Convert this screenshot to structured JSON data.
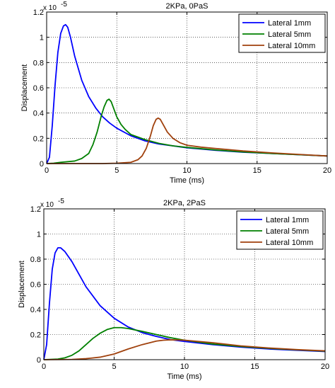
{
  "page": {
    "caption_fragment": ""
  },
  "chart_data": [
    {
      "type": "line",
      "title": "2KPa, 0PaS",
      "xlabel": "Time (ms)",
      "ylabel": "Displacement",
      "y_multiplier": "x 10",
      "y_multiplier_exp": "-5",
      "xlim": [
        0,
        20
      ],
      "ylim": [
        0,
        1.2
      ],
      "xticks": [
        0,
        5,
        10,
        15,
        20
      ],
      "xtick_labels": [
        "0",
        "5",
        "10",
        "15",
        "20"
      ],
      "yticks": [
        0,
        0.2,
        0.4,
        0.6,
        0.8,
        1.0,
        1.2
      ],
      "ytick_labels": [
        "0",
        "0.2",
        "0.4",
        "0.6",
        "0.8",
        "1",
        "1.2"
      ],
      "grid": true,
      "legend_position": "top-right",
      "series": [
        {
          "name": "Lateral 1mm",
          "color": "#0000ff",
          "x": [
            0,
            0.2,
            0.4,
            0.6,
            0.8,
            1.0,
            1.2,
            1.35,
            1.5,
            1.7,
            2.0,
            2.5,
            3.0,
            3.5,
            4.0,
            4.5,
            5.0,
            6.0,
            7.0,
            8.0,
            9.0,
            10.0,
            12.0,
            14.0,
            16.0,
            18.0,
            20.0
          ],
          "y": [
            0,
            0.05,
            0.3,
            0.62,
            0.88,
            1.03,
            1.09,
            1.1,
            1.08,
            1.0,
            0.85,
            0.66,
            0.53,
            0.44,
            0.37,
            0.32,
            0.28,
            0.22,
            0.18,
            0.155,
            0.14,
            0.125,
            0.105,
            0.09,
            0.08,
            0.07,
            0.06
          ]
        },
        {
          "name": "Lateral 5mm",
          "color": "#008000",
          "x": [
            0,
            0.5,
            1.0,
            2.0,
            2.5,
            3.0,
            3.3,
            3.6,
            3.9,
            4.1,
            4.3,
            4.45,
            4.6,
            4.8,
            5.0,
            5.3,
            5.6,
            6.0,
            7.0,
            8.0,
            9.0,
            10.0,
            12.0,
            14.0,
            16.0,
            18.0,
            20.0
          ],
          "y": [
            0,
            0.003,
            0.01,
            0.02,
            0.04,
            0.08,
            0.15,
            0.25,
            0.38,
            0.45,
            0.5,
            0.51,
            0.49,
            0.43,
            0.37,
            0.31,
            0.27,
            0.23,
            0.19,
            0.16,
            0.14,
            0.128,
            0.108,
            0.092,
            0.08,
            0.07,
            0.06
          ]
        },
        {
          "name": "Lateral 10mm",
          "color": "#a0410d",
          "x": [
            0,
            2.0,
            4.0,
            5.0,
            6.0,
            6.5,
            6.8,
            7.1,
            7.4,
            7.6,
            7.8,
            7.95,
            8.1,
            8.3,
            8.6,
            9.0,
            9.5,
            10.0,
            11.0,
            12.0,
            14.0,
            16.0,
            18.0,
            20.0
          ],
          "y": [
            0,
            0.0,
            0.0,
            0.003,
            0.01,
            0.03,
            0.06,
            0.12,
            0.22,
            0.3,
            0.35,
            0.36,
            0.35,
            0.31,
            0.25,
            0.2,
            0.165,
            0.145,
            0.13,
            0.12,
            0.1,
            0.085,
            0.072,
            0.06
          ]
        }
      ]
    },
    {
      "type": "line",
      "title": "2KPa, 2PaS",
      "xlabel": "Time (ms)",
      "ylabel": "Displacement",
      "y_multiplier": "x 10",
      "y_multiplier_exp": "-5",
      "xlim": [
        0,
        20
      ],
      "ylim": [
        0,
        1.2
      ],
      "xticks": [
        0,
        5,
        10,
        15,
        20
      ],
      "xtick_labels": [
        "0",
        "5",
        "10",
        "15",
        "20"
      ],
      "yticks": [
        0,
        0.2,
        0.4,
        0.6,
        0.8,
        1.0,
        1.2
      ],
      "ytick_labels": [
        "0",
        "0.2",
        "0.4",
        "0.6",
        "0.8",
        "1",
        "1.2"
      ],
      "grid": true,
      "legend_position": "top-right",
      "series": [
        {
          "name": "Lateral 1mm",
          "color": "#0000ff",
          "x": [
            0,
            0.2,
            0.4,
            0.6,
            0.8,
            1.0,
            1.2,
            1.5,
            2.0,
            2.5,
            3.0,
            4.0,
            5.0,
            6.0,
            7.0,
            8.0,
            9.0,
            10.0,
            12.0,
            14.0,
            16.0,
            18.0,
            20.0
          ],
          "y": [
            0,
            0.12,
            0.45,
            0.72,
            0.85,
            0.89,
            0.89,
            0.86,
            0.78,
            0.68,
            0.58,
            0.43,
            0.33,
            0.26,
            0.215,
            0.185,
            0.16,
            0.145,
            0.12,
            0.1,
            0.085,
            0.075,
            0.065
          ]
        },
        {
          "name": "Lateral 5mm",
          "color": "#008000",
          "x": [
            0,
            1.0,
            1.5,
            2.0,
            2.5,
            3.0,
            3.5,
            4.0,
            4.5,
            5.0,
            5.5,
            6.0,
            7.0,
            8.0,
            9.0,
            10.0,
            12.0,
            14.0,
            16.0,
            18.0,
            20.0
          ],
          "y": [
            0,
            0.005,
            0.015,
            0.035,
            0.07,
            0.12,
            0.17,
            0.21,
            0.24,
            0.255,
            0.255,
            0.248,
            0.225,
            0.2,
            0.175,
            0.155,
            0.125,
            0.105,
            0.09,
            0.078,
            0.068
          ]
        },
        {
          "name": "Lateral 10mm",
          "color": "#a0410d",
          "x": [
            0,
            2.0,
            3.0,
            4.0,
            5.0,
            6.0,
            7.0,
            8.0,
            8.5,
            9.0,
            9.5,
            10.0,
            11.0,
            12.0,
            14.0,
            16.0,
            18.0,
            20.0
          ],
          "y": [
            0,
            0.002,
            0.008,
            0.02,
            0.045,
            0.085,
            0.12,
            0.148,
            0.155,
            0.158,
            0.157,
            0.155,
            0.145,
            0.135,
            0.11,
            0.093,
            0.08,
            0.07
          ]
        }
      ]
    }
  ]
}
